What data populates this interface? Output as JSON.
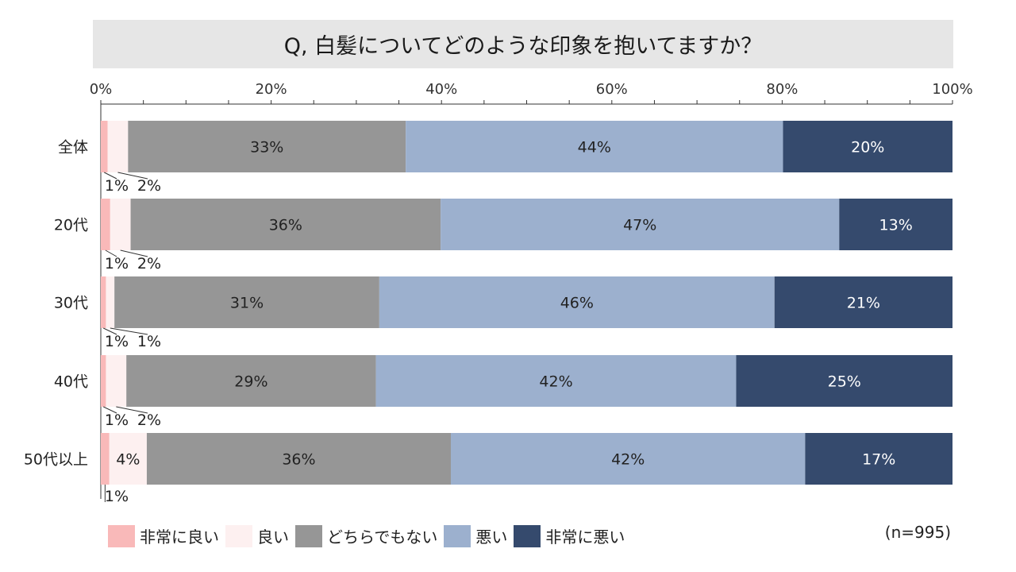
{
  "title": "Q, 白髪についてどのような印象を抱いてますか？",
  "note": "(n=995)",
  "chart_data": {
    "type": "bar",
    "orientation": "horizontal-stacked-100",
    "title": "Q, 白髪についてどのような印象を抱いてますか？",
    "xlim": [
      0,
      100
    ],
    "xticks": [
      "0%",
      "20%",
      "40%",
      "60%",
      "80%",
      "100%"
    ],
    "categories": [
      "全体",
      "20代",
      "30代",
      "40代",
      "50代以上"
    ],
    "series": [
      {
        "name": "非常に良い",
        "color": "#f9b9b9",
        "values": [
          0.8,
          1.1,
          0.6,
          0.6,
          1.0
        ],
        "labels": [
          "1%",
          "1%",
          "1%",
          "1%",
          "1%"
        ]
      },
      {
        "name": "良い",
        "color": "#fdf0f0",
        "values": [
          2.4,
          2.4,
          1.0,
          2.4,
          4.4
        ],
        "labels": [
          "2%",
          "2%",
          "1%",
          "2%",
          "4%"
        ]
      },
      {
        "name": "どちらでもない",
        "color": "#969696",
        "values": [
          32.6,
          36.4,
          31.1,
          29.3,
          35.7
        ],
        "labels": [
          "33%",
          "36%",
          "31%",
          "29%",
          "36%"
        ]
      },
      {
        "name": "悪い",
        "color": "#9cb0ce",
        "values": [
          44.3,
          46.8,
          46.4,
          42.3,
          41.6
        ],
        "labels": [
          "44%",
          "47%",
          "46%",
          "42%",
          "42%"
        ]
      },
      {
        "name": "非常に悪い",
        "color": "#354a6d",
        "values": [
          19.9,
          13.3,
          20.9,
          25.4,
          17.3
        ],
        "labels": [
          "20%",
          "13%",
          "21%",
          "25%",
          "17%"
        ]
      }
    ]
  }
}
